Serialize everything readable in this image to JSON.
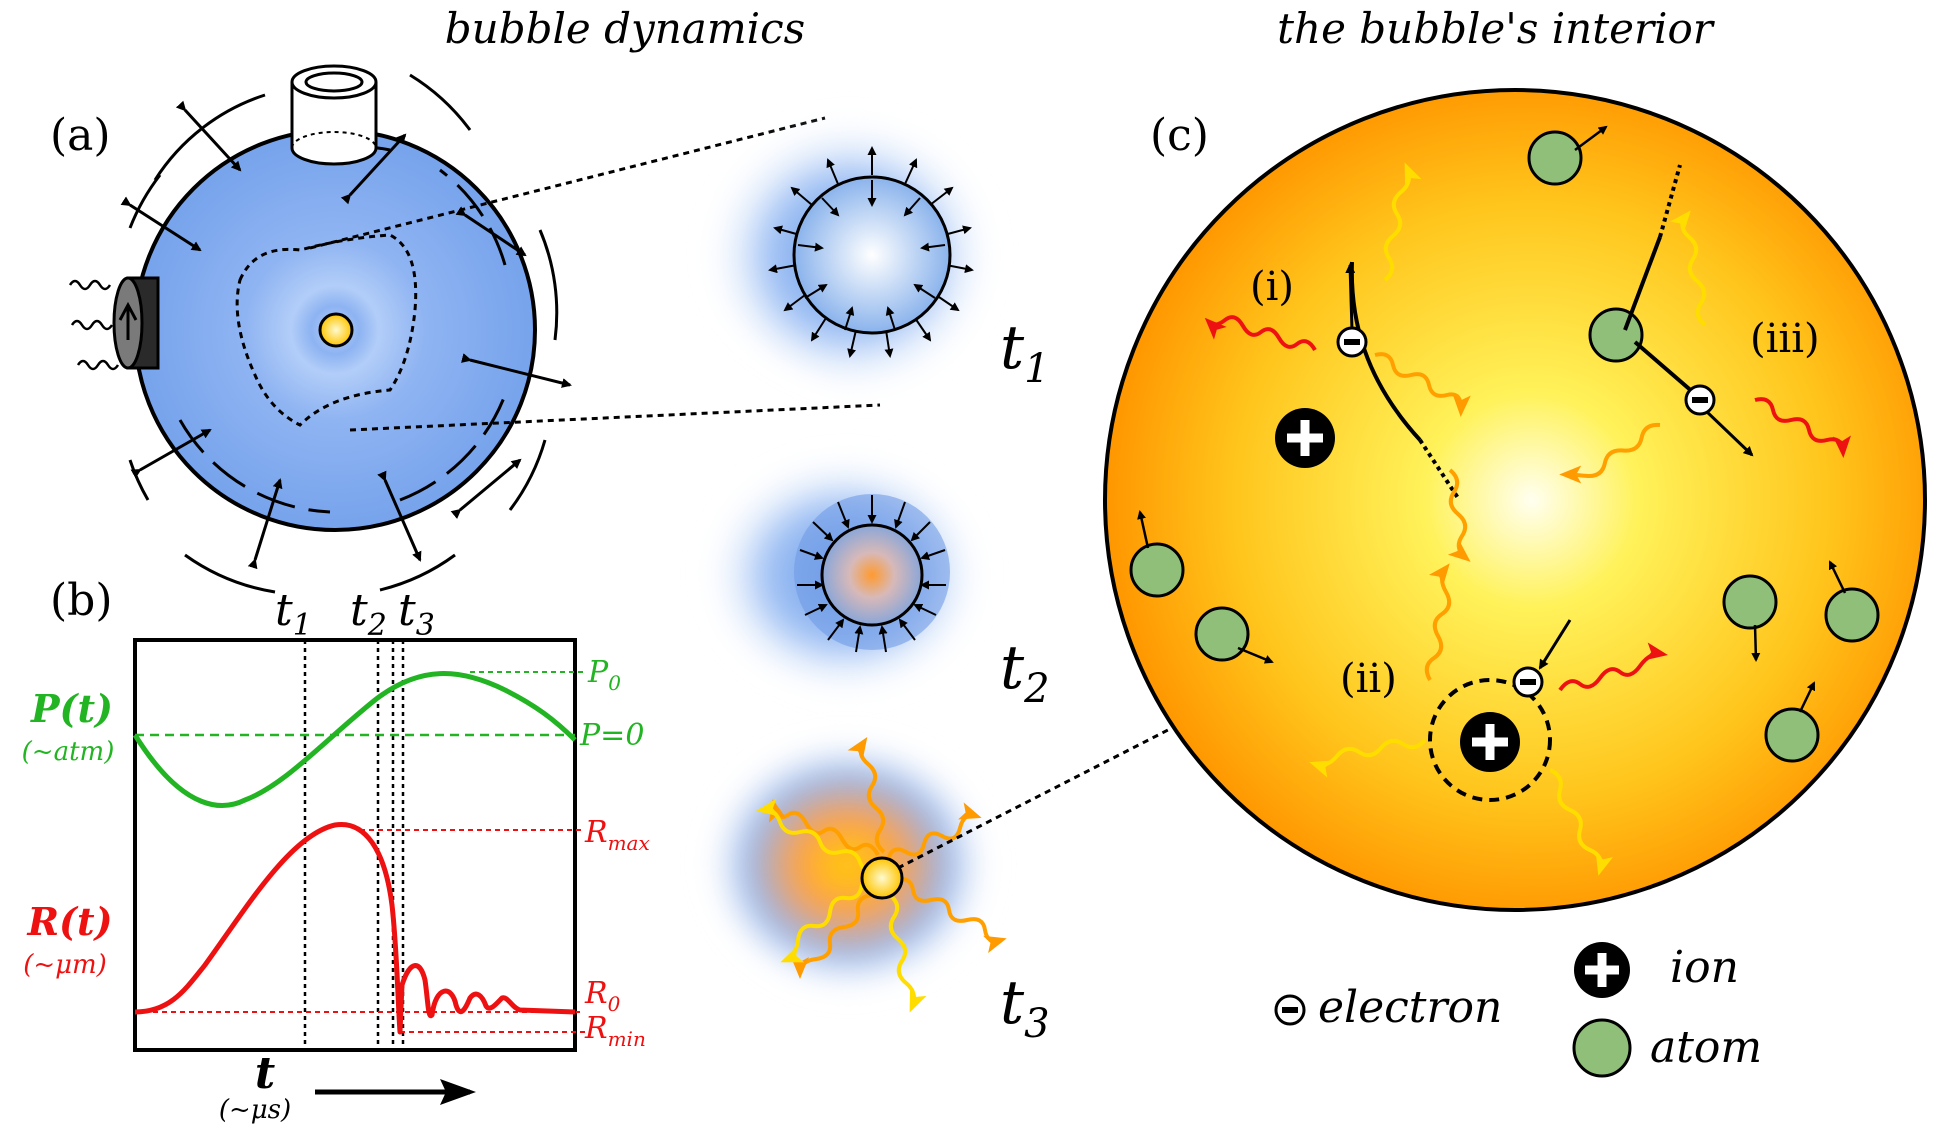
{
  "titles": {
    "left": "bubble dynamics",
    "right": "the bubble's interior"
  },
  "panels": {
    "a": "(a)",
    "b": "(b)",
    "c": "(c)"
  },
  "times": {
    "t1_main": "t",
    "t1_sub": "1",
    "t2_main": "t",
    "t2_sub": "2",
    "t3_main": "t",
    "t3_sub": "3"
  },
  "chart_data": {
    "type": "line",
    "x_axis": {
      "main": "t",
      "units": "(~μs)"
    },
    "time_markers": [
      "t1",
      "t2",
      "t3"
    ],
    "series": [
      {
        "name": "P(t)",
        "units": "(~atm)",
        "color": "#22b422",
        "reference_lines": [
          "P0",
          "P=0"
        ]
      },
      {
        "name": "R(t)",
        "units": "(~μm)",
        "color": "#ee1111",
        "reference_lines": [
          "Rmax",
          "R0",
          "Rmin"
        ]
      }
    ]
  },
  "chart_labels": {
    "P_name": "P(t)",
    "P_units": "(~atm)",
    "R_name": "R(t)",
    "R_units": "(~μm)",
    "x_main": "t",
    "x_units": "(~μs)",
    "P0_main": "P",
    "P0_sub": "0",
    "Pzero": "P=0",
    "Rmax_main": "R",
    "Rmax_sub": "max",
    "R0_main": "R",
    "R0_sub": "0",
    "Rmin_main": "R",
    "Rmin_sub": "min",
    "m1_main": "t",
    "m1_sub": "1",
    "m2_main": "t",
    "m2_sub": "2",
    "m3_main": "t",
    "m3_sub": "3"
  },
  "interior": {
    "proc_i": "(i)",
    "proc_ii": "(ii)",
    "proc_iii": "(iii)"
  },
  "legend": {
    "electron": "electron",
    "ion": "ion",
    "atom": "atom"
  },
  "colors": {
    "water_blue": "#7aa7ef",
    "interior_center": "#fffbe0",
    "interior_edge": "#ff9a00",
    "atom_green": "#8fbf78",
    "red_photon": "#ee1111",
    "orange_photon": "#ff9a00",
    "yellow_photon": "#ffd800"
  }
}
